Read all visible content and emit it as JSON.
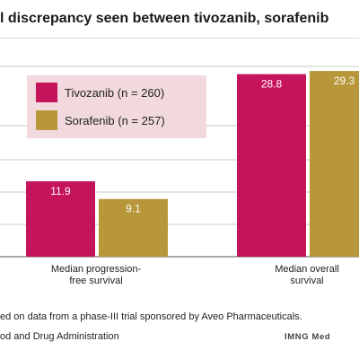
{
  "chart_data": {
    "type": "bar",
    "title": "l discrepancy seen between tivozanib, sorafenib",
    "categories": [
      "Median progression-\nfree survival",
      "Median overall\nsurvival"
    ],
    "series": [
      {
        "name": "Tivozanib (n = 260)",
        "values": [
          11.9,
          28.8
        ],
        "labels": [
          "11.9",
          "28.8"
        ],
        "color": "#c5145c"
      },
      {
        "name": "Sorafenib (n = 257)",
        "values": [
          9.1,
          29.3
        ],
        "labels": [
          "9.1",
          "29.3"
        ],
        "color": "#b8963a"
      }
    ],
    "ylim": [
      0,
      32
    ],
    "grid": true,
    "legend_position": "top-left"
  },
  "notes": {
    "line1": "ed on data from a phase-III trial sponsored by Aveo Pharmaceuticals.",
    "line2": "od and Drug Administration",
    "credit": "IMNG Med"
  },
  "colors": {
    "grid": "#c8c8c8",
    "axis": "#555555",
    "legend_bg": "#f2d9dd"
  }
}
